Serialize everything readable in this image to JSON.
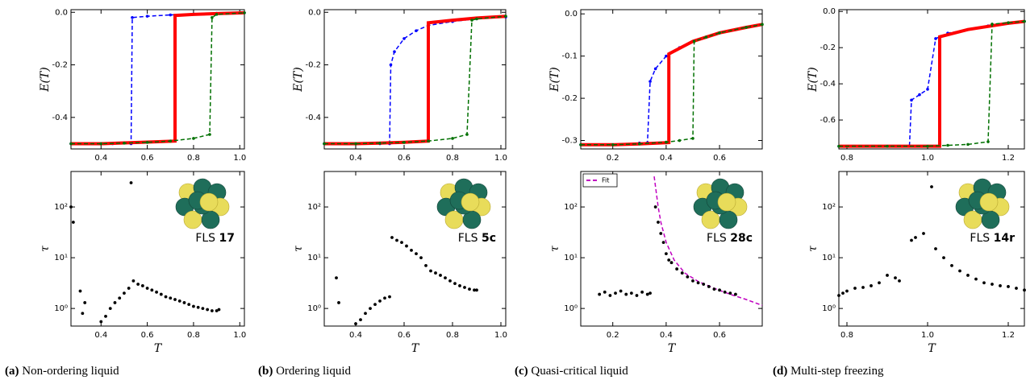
{
  "chart_data": [
    {
      "type": "line",
      "ylabel": "E(T)",
      "xlim": [
        0.27,
        1.02
      ],
      "ylim": [
        -0.52,
        0.01
      ],
      "xticks": [
        0.4,
        0.6,
        0.8,
        {
          "value": 1,
          "label": "1.0"
        }
      ],
      "yticks": [
        {
          "value": 0,
          "label": "0.0"
        },
        -0.2,
        -0.4
      ],
      "series": [
        {
          "color": "#0000ff",
          "linestyle": "dashed",
          "markers": true,
          "x": [
            0.27,
            0.35,
            0.45,
            0.53,
            0.535,
            0.6,
            0.7,
            0.8,
            0.9,
            1.02
          ],
          "values": [
            -0.5,
            -0.5,
            -0.5,
            -0.5,
            -0.02,
            -0.015,
            -0.01,
            -0.007,
            -0.004,
            -0.002
          ]
        },
        {
          "color": "#ff0000",
          "linestyle": "solid",
          "width": 4,
          "x": [
            0.27,
            0.4,
            0.5,
            0.6,
            0.72,
            0.72,
            0.8,
            0.9,
            1.02
          ],
          "values": [
            -0.5,
            -0.5,
            -0.497,
            -0.494,
            -0.49,
            -0.012,
            -0.008,
            -0.005,
            -0.002
          ]
        },
        {
          "color": "#007000",
          "linestyle": "dashed",
          "markers": true,
          "x": [
            0.27,
            0.4,
            0.5,
            0.6,
            0.7,
            0.8,
            0.87,
            0.88,
            0.9,
            1.02
          ],
          "values": [
            -0.5,
            -0.5,
            -0.498,
            -0.495,
            -0.49,
            -0.48,
            -0.465,
            -0.02,
            -0.008,
            -0.002
          ]
        }
      ]
    },
    {
      "type": "scatter",
      "xlabel": "T",
      "ylabel": "τ",
      "log_y": true,
      "xlim": [
        0.27,
        1.02
      ],
      "ylim": [
        0.45,
        500
      ],
      "xticks": [
        0.4,
        0.6,
        0.8,
        {
          "value": 1,
          "label": "1.0"
        }
      ],
      "yticks": [
        {
          "value": 1,
          "label": "10⁰"
        },
        {
          "value": 10,
          "label": "10¹"
        },
        {
          "value": 100,
          "label": "10²"
        }
      ],
      "color": "#000000",
      "x": [
        0.27,
        0.28,
        0.31,
        0.32,
        0.33,
        0.4,
        0.42,
        0.44,
        0.46,
        0.48,
        0.5,
        0.52,
        0.53,
        0.54,
        0.56,
        0.58,
        0.6,
        0.62,
        0.64,
        0.66,
        0.68,
        0.7,
        0.72,
        0.74,
        0.76,
        0.78,
        0.8,
        0.82,
        0.84,
        0.86,
        0.88,
        0.9,
        0.91
      ],
      "values": [
        100,
        50,
        2.2,
        0.8,
        1.3,
        0.55,
        0.7,
        1,
        1.3,
        1.6,
        2,
        2.5,
        300,
        3.5,
        3,
        2.8,
        2.5,
        2.3,
        2.1,
        1.9,
        1.7,
        1.6,
        1.5,
        1.4,
        1.3,
        1.2,
        1.1,
        1.05,
        1,
        0.95,
        0.9,
        0.9,
        0.95
      ],
      "annotation": {
        "label": "FLS",
        "id": "17"
      },
      "caption": {
        "label": "(a)",
        "text": "Non-ordering liquid"
      }
    },
    {
      "type": "line",
      "ylabel": "E(T)",
      "xlim": [
        0.27,
        1.02
      ],
      "ylim": [
        -0.52,
        0.01
      ],
      "xticks": [
        0.4,
        0.6,
        0.8,
        {
          "value": 1,
          "label": "1.0"
        }
      ],
      "yticks": [
        {
          "value": 0,
          "label": "0.0"
        },
        -0.2,
        -0.4
      ],
      "series": [
        {
          "color": "#0000ff",
          "linestyle": "dashed",
          "markers": true,
          "x": [
            0.27,
            0.4,
            0.5,
            0.54,
            0.545,
            0.56,
            0.6,
            0.65,
            0.7,
            0.8,
            0.9,
            1.02
          ],
          "values": [
            -0.5,
            -0.5,
            -0.5,
            -0.5,
            -0.2,
            -0.15,
            -0.1,
            -0.07,
            -0.05,
            -0.035,
            -0.025,
            -0.018
          ]
        },
        {
          "color": "#ff0000",
          "linestyle": "solid",
          "width": 4,
          "x": [
            0.27,
            0.4,
            0.5,
            0.6,
            0.7,
            0.7,
            0.8,
            0.9,
            1.02
          ],
          "values": [
            -0.5,
            -0.5,
            -0.498,
            -0.495,
            -0.49,
            -0.04,
            -0.03,
            -0.022,
            -0.015
          ]
        },
        {
          "color": "#007000",
          "linestyle": "dashed",
          "markers": true,
          "x": [
            0.27,
            0.4,
            0.5,
            0.6,
            0.7,
            0.8,
            0.86,
            0.88,
            0.9,
            1.02
          ],
          "values": [
            -0.5,
            -0.5,
            -0.498,
            -0.495,
            -0.49,
            -0.48,
            -0.465,
            -0.03,
            -0.025,
            -0.015
          ]
        }
      ]
    },
    {
      "type": "scatter",
      "xlabel": "T",
      "ylabel": "τ",
      "log_y": true,
      "xlim": [
        0.27,
        1.02
      ],
      "ylim": [
        0.45,
        500
      ],
      "xticks": [
        0.4,
        0.6,
        0.8,
        {
          "value": 1,
          "label": "1.0"
        }
      ],
      "yticks": [
        {
          "value": 1,
          "label": "10⁰"
        },
        {
          "value": 10,
          "label": "10¹"
        },
        {
          "value": 100,
          "label": "10²"
        }
      ],
      "color": "#000000",
      "x": [
        0.32,
        0.33,
        0.4,
        0.42,
        0.44,
        0.46,
        0.48,
        0.5,
        0.52,
        0.54,
        0.55,
        0.57,
        0.59,
        0.61,
        0.63,
        0.65,
        0.67,
        0.69,
        0.71,
        0.73,
        0.75,
        0.77,
        0.79,
        0.81,
        0.83,
        0.85,
        0.87,
        0.89,
        0.9
      ],
      "values": [
        4,
        1.3,
        0.5,
        0.6,
        0.8,
        1,
        1.2,
        1.4,
        1.6,
        1.7,
        25,
        22,
        20,
        17,
        14,
        12,
        10,
        7,
        5.5,
        5,
        4.5,
        4,
        3.5,
        3.1,
        2.8,
        2.6,
        2.4,
        2.3,
        2.3
      ],
      "annotation": {
        "label": "FLS",
        "id": "5c"
      },
      "caption": {
        "label": "(b)",
        "text": "Ordering liquid"
      }
    },
    {
      "type": "line",
      "ylabel": "E(T)",
      "xlim": [
        0.08,
        0.76
      ],
      "ylim": [
        -0.32,
        0.01
      ],
      "xticks": [
        0.2,
        0.4,
        0.6
      ],
      "yticks": [
        {
          "value": 0,
          "label": "0.0"
        },
        -0.1,
        -0.2,
        -0.3
      ],
      "series": [
        {
          "color": "#0000ff",
          "linestyle": "dashed",
          "markers": true,
          "x": [
            0.08,
            0.2,
            0.3,
            0.33,
            0.34,
            0.36,
            0.4,
            0.45,
            0.5,
            0.55
          ],
          "values": [
            -0.31,
            -0.31,
            -0.306,
            -0.305,
            -0.16,
            -0.13,
            -0.1,
            -0.08,
            -0.065,
            -0.055
          ]
        },
        {
          "color": "#ff0000",
          "linestyle": "solid",
          "width": 4,
          "x": [
            0.08,
            0.2,
            0.3,
            0.41,
            0.41,
            0.5,
            0.6,
            0.7,
            0.76
          ],
          "values": [
            -0.31,
            -0.31,
            -0.308,
            -0.305,
            -0.095,
            -0.065,
            -0.045,
            -0.032,
            -0.025
          ]
        },
        {
          "color": "#007000",
          "linestyle": "dashed",
          "markers": true,
          "x": [
            0.08,
            0.2,
            0.3,
            0.4,
            0.45,
            0.5,
            0.505,
            0.55,
            0.6,
            0.7,
            0.76
          ],
          "values": [
            -0.31,
            -0.31,
            -0.308,
            -0.304,
            -0.3,
            -0.295,
            -0.065,
            -0.055,
            -0.045,
            -0.032,
            -0.025
          ]
        }
      ]
    },
    {
      "type": "scatter",
      "xlabel": "T",
      "ylabel": "τ",
      "log_y": true,
      "xlim": [
        0.08,
        0.76
      ],
      "ylim": [
        0.45,
        500
      ],
      "xticks": [
        0.2,
        0.4,
        0.6
      ],
      "yticks": [
        {
          "value": 1,
          "label": "10⁰"
        },
        {
          "value": 10,
          "label": "10¹"
        },
        {
          "value": 100,
          "label": "10²"
        }
      ],
      "color": "#000000",
      "x": [
        0.15,
        0.17,
        0.19,
        0.21,
        0.23,
        0.25,
        0.27,
        0.29,
        0.31,
        0.33,
        0.34,
        0.36,
        0.37,
        0.38,
        0.39,
        0.4,
        0.41,
        0.42,
        0.44,
        0.46,
        0.48,
        0.5,
        0.52,
        0.54,
        0.56,
        0.58,
        0.6,
        0.62,
        0.64,
        0.66
      ],
      "values": [
        1.9,
        2.1,
        1.8,
        2,
        2.2,
        1.9,
        2,
        1.8,
        2.1,
        1.9,
        2,
        100,
        50,
        30,
        20,
        12,
        9,
        8,
        6,
        5,
        4.2,
        3.5,
        3.2,
        3,
        2.7,
        2.4,
        2.3,
        2.1,
        2,
        1.9
      ],
      "series": [
        {
          "name": "Fit",
          "color": "#c000c0",
          "linestyle": "dashed",
          "x": [
            0.355,
            0.37,
            0.38,
            0.4,
            0.43,
            0.47,
            0.52,
            0.58,
            0.64,
            0.7,
            0.76
          ],
          "values": [
            400,
            100,
            50,
            20,
            9,
            5,
            3.4,
            2.5,
            1.9,
            1.5,
            1.15
          ]
        }
      ],
      "legend": "upper left",
      "annotation": {
        "label": "FLS",
        "id": "28c"
      },
      "caption": {
        "label": "(c)",
        "text": "Quasi-critical liquid"
      }
    },
    {
      "type": "line",
      "ylabel": "E(T)",
      "xlim": [
        0.78,
        1.24
      ],
      "ylim": [
        -0.76,
        0.01
      ],
      "xticks": [
        0.8,
        {
          "value": 1,
          "label": "1.0"
        },
        1.2
      ],
      "yticks": [
        {
          "value": 0,
          "label": "0.0"
        },
        -0.2,
        -0.4,
        -0.6
      ],
      "series": [
        {
          "color": "#0000ff",
          "linestyle": "dashed",
          "markers": true,
          "x": [
            0.78,
            0.85,
            0.9,
            0.955,
            0.96,
            0.98,
            1,
            1.02,
            1.05,
            1.1,
            1.15,
            1.2,
            1.24
          ],
          "values": [
            -0.745,
            -0.745,
            -0.745,
            -0.745,
            -0.49,
            -0.46,
            -0.43,
            -0.15,
            -0.12,
            -0.1,
            -0.08,
            -0.065,
            -0.055
          ]
        },
        {
          "color": "#ff0000",
          "linestyle": "solid",
          "width": 4,
          "x": [
            0.78,
            0.9,
            1.03,
            1.03,
            1.1,
            1.2,
            1.24
          ],
          "values": [
            -0.745,
            -0.745,
            -0.745,
            -0.14,
            -0.1,
            -0.065,
            -0.055
          ]
        },
        {
          "color": "#007000",
          "linestyle": "dashed",
          "markers": true,
          "x": [
            0.78,
            0.9,
            1,
            1.05,
            1.1,
            1.15,
            1.16,
            1.2,
            1.24
          ],
          "values": [
            -0.745,
            -0.745,
            -0.745,
            -0.74,
            -0.735,
            -0.72,
            -0.07,
            -0.062,
            -0.055
          ]
        }
      ]
    },
    {
      "type": "scatter",
      "xlabel": "T",
      "ylabel": "τ",
      "log_y": true,
      "xlim": [
        0.78,
        1.24
      ],
      "ylim": [
        0.45,
        500
      ],
      "xticks": [
        0.8,
        {
          "value": 1,
          "label": "1.0"
        },
        1.2
      ],
      "yticks": [
        {
          "value": 1,
          "label": "10⁰"
        },
        {
          "value": 10,
          "label": "10¹"
        },
        {
          "value": 100,
          "label": "10²"
        }
      ],
      "color": "#000000",
      "x": [
        0.78,
        0.79,
        0.8,
        0.82,
        0.84,
        0.86,
        0.88,
        0.9,
        0.92,
        0.93,
        0.96,
        0.97,
        0.99,
        1.01,
        1.02,
        1.04,
        1.06,
        1.08,
        1.1,
        1.12,
        1.14,
        1.16,
        1.18,
        1.2,
        1.22,
        1.24
      ],
      "values": [
        1.8,
        2,
        2.2,
        2.5,
        2.6,
        2.8,
        3.2,
        4.5,
        4,
        3.5,
        22,
        25,
        30,
        250,
        15,
        10,
        7,
        5.5,
        4.5,
        3.8,
        3.2,
        3,
        2.8,
        2.7,
        2.5,
        2.3
      ],
      "annotation": {
        "label": "FLS",
        "id": "14r"
      },
      "caption": {
        "label": "(d)",
        "text": "Multi-step freezing"
      }
    }
  ]
}
